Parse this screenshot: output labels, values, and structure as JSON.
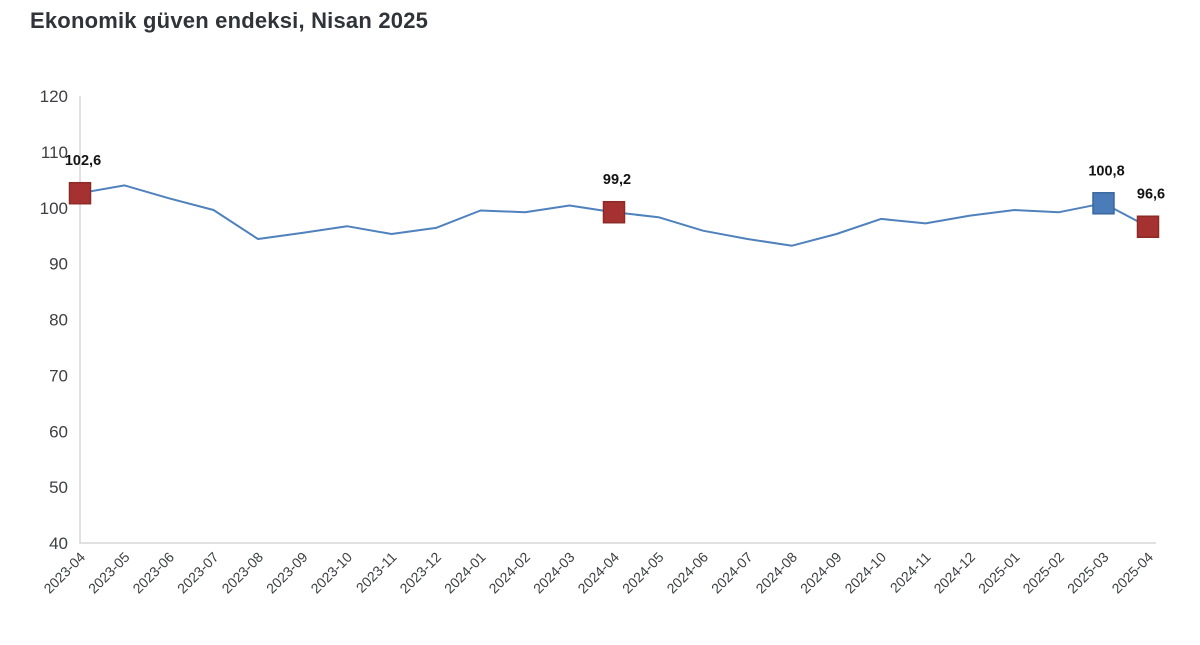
{
  "title": "Ekonomik güven endeksi, Nisan 2025",
  "chart_data": {
    "type": "line",
    "title": "Ekonomik güven endeksi, Nisan 2025",
    "x": [
      "2023-04",
      "2023-05",
      "2023-06",
      "2023-07",
      "2023-08",
      "2023-09",
      "2023-10",
      "2023-11",
      "2023-12",
      "2024-01",
      "2024-02",
      "2024-03",
      "2024-04",
      "2024-05",
      "2024-06",
      "2024-07",
      "2024-08",
      "2024-09",
      "2024-10",
      "2024-11",
      "2024-12",
      "2025-01",
      "2025-02",
      "2025-03",
      "2025-04"
    ],
    "values": [
      102.6,
      104.0,
      101.7,
      99.6,
      94.4,
      95.5,
      96.7,
      95.3,
      96.4,
      99.5,
      99.2,
      100.4,
      99.2,
      98.3,
      95.9,
      94.4,
      93.2,
      95.3,
      98.0,
      97.2,
      98.6,
      99.6,
      99.2,
      100.8,
      96.6
    ],
    "ylim": [
      40,
      120
    ],
    "yticks": [
      120,
      110,
      100,
      90,
      80,
      70,
      60,
      50,
      40
    ],
    "grid": false,
    "legend": null,
    "xlabel": "",
    "ylabel": "",
    "line_color": "#4f81bd",
    "axis_color": "#d7d7d7",
    "tick_label_color": "#3d3f42",
    "annotation_color": "#141414",
    "highlighted_points": [
      {
        "x": "2023-04",
        "value": 102.6,
        "label": "102,6",
        "marker_color": "#a53230",
        "marker_border": "#8c2a27"
      },
      {
        "x": "2024-04",
        "value": 99.2,
        "label": "99,2",
        "marker_color": "#a53230",
        "marker_border": "#8c2a27"
      },
      {
        "x": "2025-03",
        "value": 100.8,
        "label": "100,8",
        "marker_color": "#4a7cba",
        "marker_border": "#3a689e"
      },
      {
        "x": "2025-04",
        "value": 96.6,
        "label": "96,6",
        "marker_color": "#a53230",
        "marker_border": "#8c2a27"
      }
    ]
  }
}
